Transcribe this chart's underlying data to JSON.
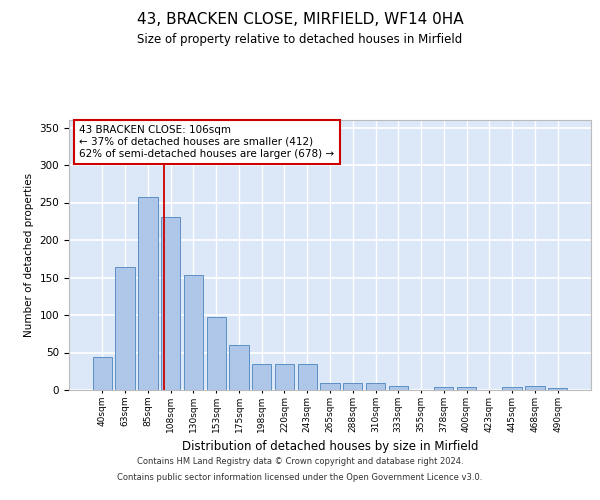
{
  "title_line1": "43, BRACKEN CLOSE, MIRFIELD, WF14 0HA",
  "title_line2": "Size of property relative to detached houses in Mirfield",
  "xlabel": "Distribution of detached houses by size in Mirfield",
  "ylabel": "Number of detached properties",
  "footer_line1": "Contains HM Land Registry data © Crown copyright and database right 2024.",
  "footer_line2": "Contains public sector information licensed under the Open Government Licence v3.0.",
  "categories": [
    "40sqm",
    "63sqm",
    "85sqm",
    "108sqm",
    "130sqm",
    "153sqm",
    "175sqm",
    "198sqm",
    "220sqm",
    "243sqm",
    "265sqm",
    "288sqm",
    "310sqm",
    "333sqm",
    "355sqm",
    "378sqm",
    "400sqm",
    "423sqm",
    "445sqm",
    "468sqm",
    "490sqm"
  ],
  "bar_values": [
    44,
    164,
    257,
    231,
    153,
    97,
    60,
    35,
    35,
    35,
    10,
    9,
    10,
    5,
    0,
    4,
    4,
    0,
    4,
    5,
    3
  ],
  "bar_color": "#aec6e8",
  "bar_edge_color": "#5b8fc4",
  "ylim": [
    0,
    360
  ],
  "yticks": [
    0,
    50,
    100,
    150,
    200,
    250,
    300,
    350
  ],
  "property_line_x": 2.72,
  "property_line_color": "#cc0000",
  "annotation_text": "43 BRACKEN CLOSE: 106sqm\n← 37% of detached houses are smaller (412)\n62% of semi-detached houses are larger (678) →",
  "bg_color": "#dce8f8",
  "grid_color": "#ffffff",
  "fig_bg_color": "#ffffff",
  "bar_width": 0.85
}
